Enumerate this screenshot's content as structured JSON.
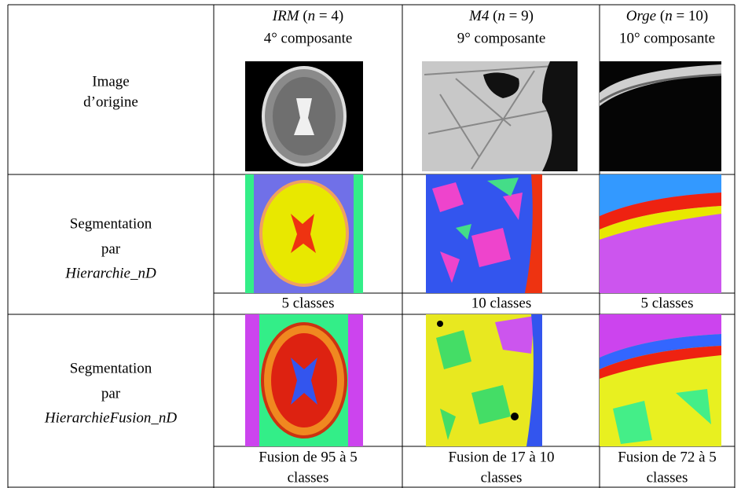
{
  "header": {
    "columns": [
      {
        "title": [
          {
            "text": "IRM",
            "italic": true
          },
          {
            "text": " (",
            "italic": false
          },
          {
            "text": "n",
            "italic": true
          },
          {
            "text": " = 4)",
            "italic": false
          }
        ],
        "subtitle": "4° composante"
      },
      {
        "title": [
          {
            "text": "M4",
            "italic": true
          },
          {
            "text": " (",
            "italic": false
          },
          {
            "text": "n",
            "italic": true
          },
          {
            "text": " = 9)",
            "italic": false
          }
        ],
        "subtitle": "9° composante"
      },
      {
        "title": [
          {
            "text": "Orge",
            "italic": true
          },
          {
            "text": " (",
            "italic": false
          },
          {
            "text": "n",
            "italic": true
          },
          {
            "text": " = 10)",
            "italic": false
          }
        ],
        "subtitle": "10° composante"
      }
    ]
  },
  "rows": [
    {
      "label": [
        "Image",
        "d’origine"
      ]
    },
    {
      "label": [
        "Segmentation",
        "par"
      ],
      "method": "Hierarchie_nD",
      "captions": [
        [
          "5 classes"
        ],
        [
          "10 classes"
        ],
        [
          "5 classes"
        ]
      ]
    },
    {
      "label": [
        "Segmentation",
        "par"
      ],
      "method": "HierarchieFusion_nD",
      "captions": [
        [
          "Fusion de 95 à 5",
          "classes"
        ],
        [
          "Fusion de 17 à 10",
          "classes"
        ],
        [
          "Fusion de 72 à 5",
          "classes"
        ]
      ]
    }
  ]
}
